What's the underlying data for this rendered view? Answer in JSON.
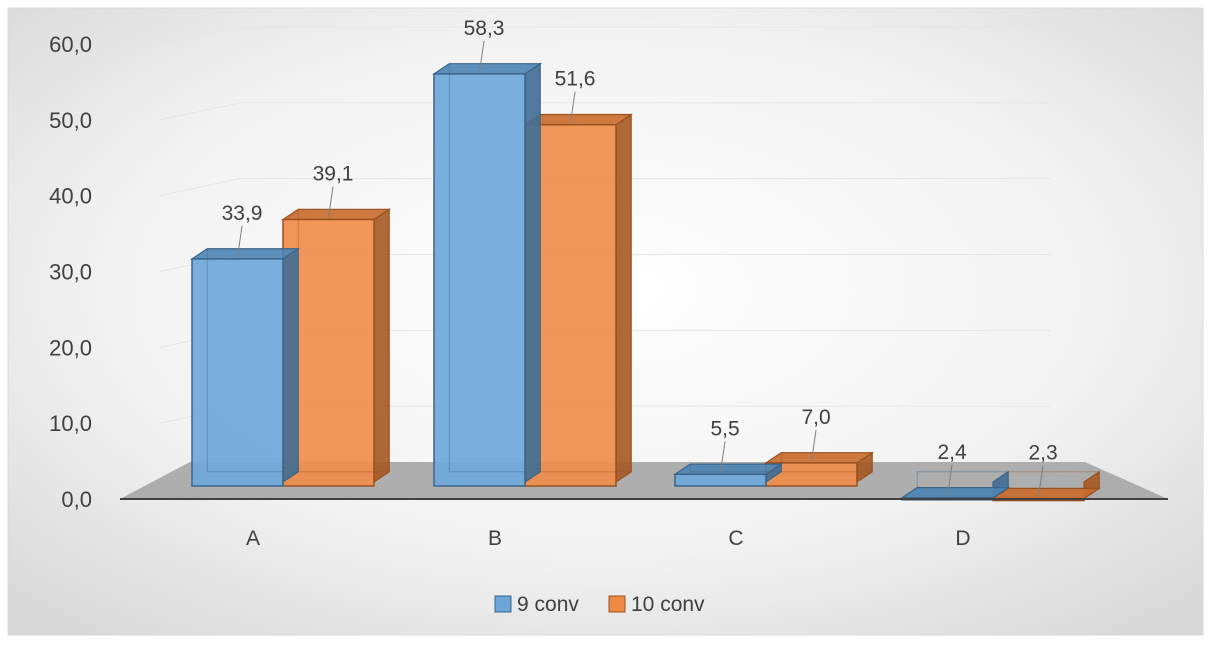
{
  "chart_data": {
    "type": "bar",
    "categories": [
      "A",
      "B",
      "C",
      "D"
    ],
    "series": [
      {
        "name": "9 conv",
        "values": [
          33.9,
          58.3,
          5.5,
          2.4
        ],
        "data_labels": [
          "33,9",
          "58,3",
          "5,5",
          "2,4"
        ],
        "color": "#5B9BD5"
      },
      {
        "name": "10 conv",
        "values": [
          39.1,
          51.6,
          7.0,
          2.3
        ],
        "data_labels": [
          "39,1",
          "51,6",
          "7,0",
          "2,3"
        ],
        "color": "#ED7D31"
      }
    ],
    "ylim": [
      0,
      60
    ],
    "yticks": [
      0,
      10,
      20,
      30,
      40,
      50,
      60
    ],
    "ytick_labels": [
      "0,0",
      "10,0",
      "20,0",
      "30,0",
      "40,0",
      "50,0",
      "60,0"
    ],
    "grid": true,
    "legend_position": "bottom",
    "style": "3d-column"
  }
}
